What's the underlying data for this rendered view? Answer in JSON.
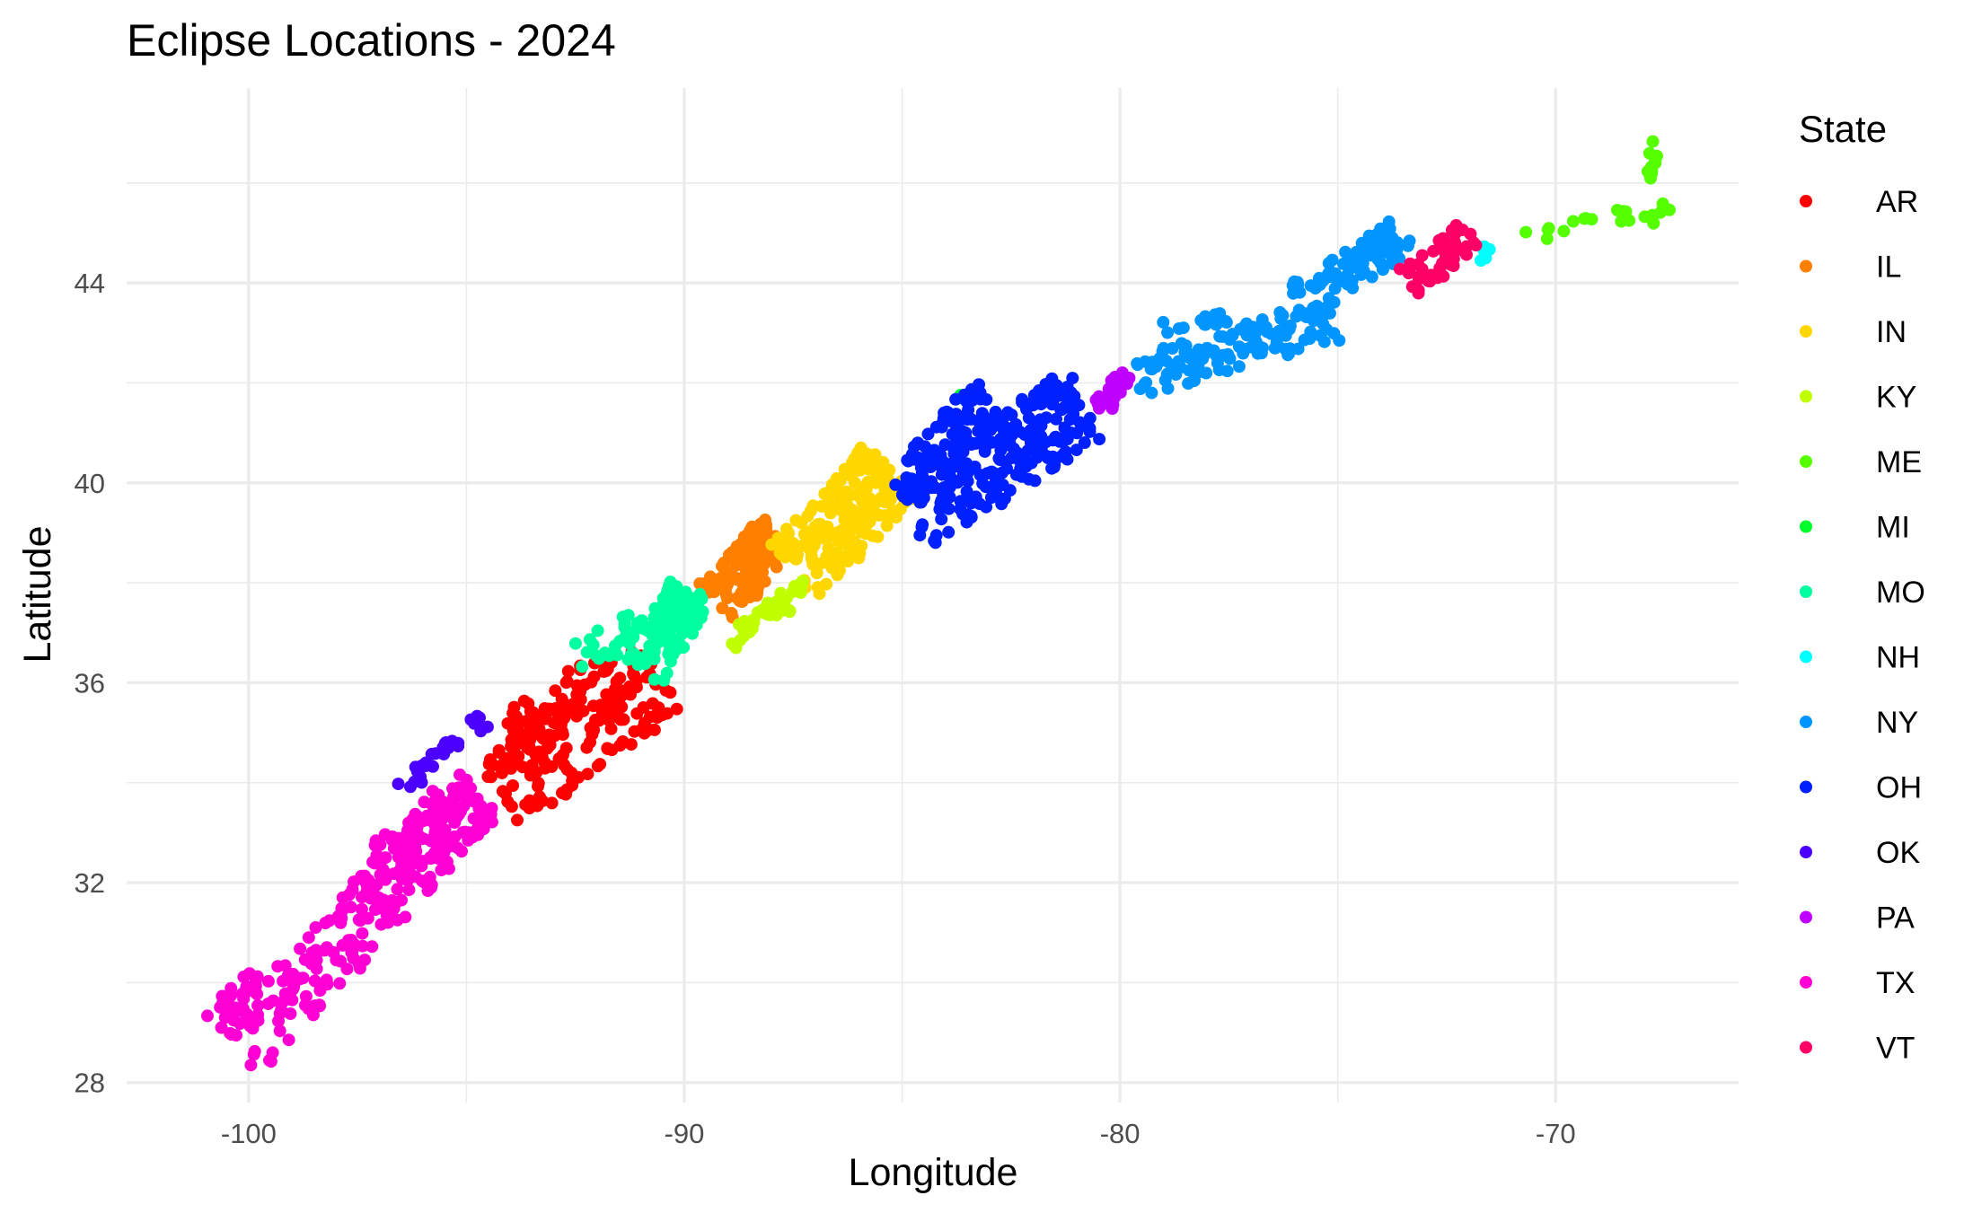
{
  "chart_data": {
    "type": "scatter",
    "title": "Eclipse Locations - 2024",
    "xlabel": "Longitude",
    "ylabel": "Latitude",
    "xlim": [
      -102.8,
      -65.8
    ],
    "ylim": [
      27.6,
      47.9
    ],
    "x_ticks": [
      -100,
      -90,
      -80,
      -70
    ],
    "x_tick_labels": [
      "-100",
      "-90",
      "-80",
      "-70"
    ],
    "y_ticks": [
      28,
      32,
      36,
      40,
      44
    ],
    "y_tick_labels": [
      "28",
      "32",
      "36",
      "40",
      "44"
    ],
    "grid": true,
    "legend": {
      "title": "State",
      "position": "right"
    },
    "series": [
      {
        "name": "AR",
        "color": "#FF0000",
        "segments": [
          {
            "from": [
              -94.2,
              33.8
            ],
            "to": [
              -90.4,
              36.2
            ],
            "half_width": 0.85,
            "n": 140
          },
          {
            "from": [
              -94.0,
              34.8
            ],
            "to": [
              -91.5,
              36.3
            ],
            "half_width": 0.6,
            "n": 60
          },
          {
            "from": [
              -94.3,
              33.9
            ],
            "to": [
              -93.6,
              35.4
            ],
            "half_width": 0.3,
            "n": 30
          }
        ]
      },
      {
        "name": "IL",
        "color": "#FF7F00",
        "segments": [
          {
            "from": [
              -89.3,
              37.6
            ],
            "to": [
              -87.9,
              38.9
            ],
            "half_width": 0.55,
            "n": 110
          },
          {
            "from": [
              -89.0,
              38.2
            ],
            "to": [
              -88.0,
              39.1
            ],
            "half_width": 0.3,
            "n": 30
          }
        ]
      },
      {
        "name": "IN",
        "color": "#FFD700",
        "segments": [
          {
            "from": [
              -87.5,
              38.2
            ],
            "to": [
              -85.2,
              40.3
            ],
            "half_width": 0.8,
            "n": 220
          }
        ]
      },
      {
        "name": "KY",
        "color": "#BFFF00",
        "segments": [
          {
            "from": [
              -89.0,
              36.8
            ],
            "to": [
              -87.2,
              37.9
            ],
            "half_width": 0.22,
            "n": 45
          }
        ]
      },
      {
        "name": "ME",
        "color": "#55FF00",
        "segments": [
          {
            "from": [
              -70.8,
              44.9
            ],
            "to": [
              -68.3,
              45.4
            ],
            "half_width": 0.15,
            "n": 14
          },
          {
            "from": [
              -67.8,
              46.0
            ],
            "to": [
              -67.7,
              46.9
            ],
            "half_width": 0.12,
            "n": 12
          },
          {
            "from": [
              -68.0,
              45.2
            ],
            "to": [
              -67.3,
              45.6
            ],
            "half_width": 0.15,
            "n": 8
          }
        ]
      },
      {
        "name": "MI",
        "color": "#00FF2A",
        "segments": [
          {
            "from": [
              -83.7,
              41.7
            ],
            "to": [
              -83.4,
              41.75
            ],
            "half_width": 0.05,
            "n": 5
          }
        ]
      },
      {
        "name": "MO",
        "color": "#00FF9F",
        "segments": [
          {
            "from": [
              -90.9,
              36.2
            ],
            "to": [
              -89.8,
              37.9
            ],
            "half_width": 0.5,
            "n": 95
          },
          {
            "from": [
              -92.6,
              36.5
            ],
            "to": [
              -90.4,
              37.4
            ],
            "half_width": 0.35,
            "n": 35
          }
        ]
      },
      {
        "name": "NH",
        "color": "#00FFFF",
        "segments": [
          {
            "from": [
              -71.7,
              44.4
            ],
            "to": [
              -71.5,
              44.9
            ],
            "half_width": 0.08,
            "n": 5
          }
        ]
      },
      {
        "name": "NY",
        "color": "#0095FF",
        "segments": [
          {
            "from": [
              -79.6,
              42.1
            ],
            "to": [
              -75.0,
              43.3
            ],
            "half_width": 0.45,
            "n": 130
          },
          {
            "from": [
              -76.0,
              43.6
            ],
            "to": [
              -73.4,
              45.0
            ],
            "half_width": 0.4,
            "n": 70
          },
          {
            "from": [
              -79.0,
              43.1
            ],
            "to": [
              -77.5,
              43.3
            ],
            "half_width": 0.12,
            "n": 20
          }
        ]
      },
      {
        "name": "OH",
        "color": "#0020FF",
        "segments": [
          {
            "from": [
              -84.8,
              39.3
            ],
            "to": [
              -80.8,
              41.6
            ],
            "half_width": 0.8,
            "n": 250
          },
          {
            "from": [
              -84.7,
              40.2
            ],
            "to": [
              -83.0,
              41.7
            ],
            "half_width": 0.5,
            "n": 80
          }
        ]
      },
      {
        "name": "OK",
        "color": "#4B00FF",
        "segments": [
          {
            "from": [
              -96.6,
              33.8
            ],
            "to": [
              -94.6,
              35.3
            ],
            "half_width": 0.2,
            "n": 30
          }
        ]
      },
      {
        "name": "PA",
        "color": "#BF00FF",
        "segments": [
          {
            "from": [
              -80.5,
              41.4
            ],
            "to": [
              -79.8,
              42.2
            ],
            "half_width": 0.22,
            "n": 30
          }
        ]
      },
      {
        "name": "TX",
        "color": "#FF00D4",
        "segments": [
          {
            "from": [
              -100.2,
              28.6
            ],
            "to": [
              -94.8,
              33.8
            ],
            "half_width": 0.7,
            "n": 240
          },
          {
            "from": [
              -97.0,
              32.3
            ],
            "to": [
              -94.5,
              33.7
            ],
            "half_width": 0.55,
            "n": 70
          },
          {
            "from": [
              -101.0,
              29.2
            ],
            "to": [
              -99.6,
              30.2
            ],
            "half_width": 0.25,
            "n": 20
          }
        ]
      },
      {
        "name": "VT",
        "color": "#FF0066",
        "segments": [
          {
            "from": [
              -73.4,
              44.0
            ],
            "to": [
              -71.9,
              45.0
            ],
            "half_width": 0.35,
            "n": 60
          }
        ]
      }
    ]
  }
}
